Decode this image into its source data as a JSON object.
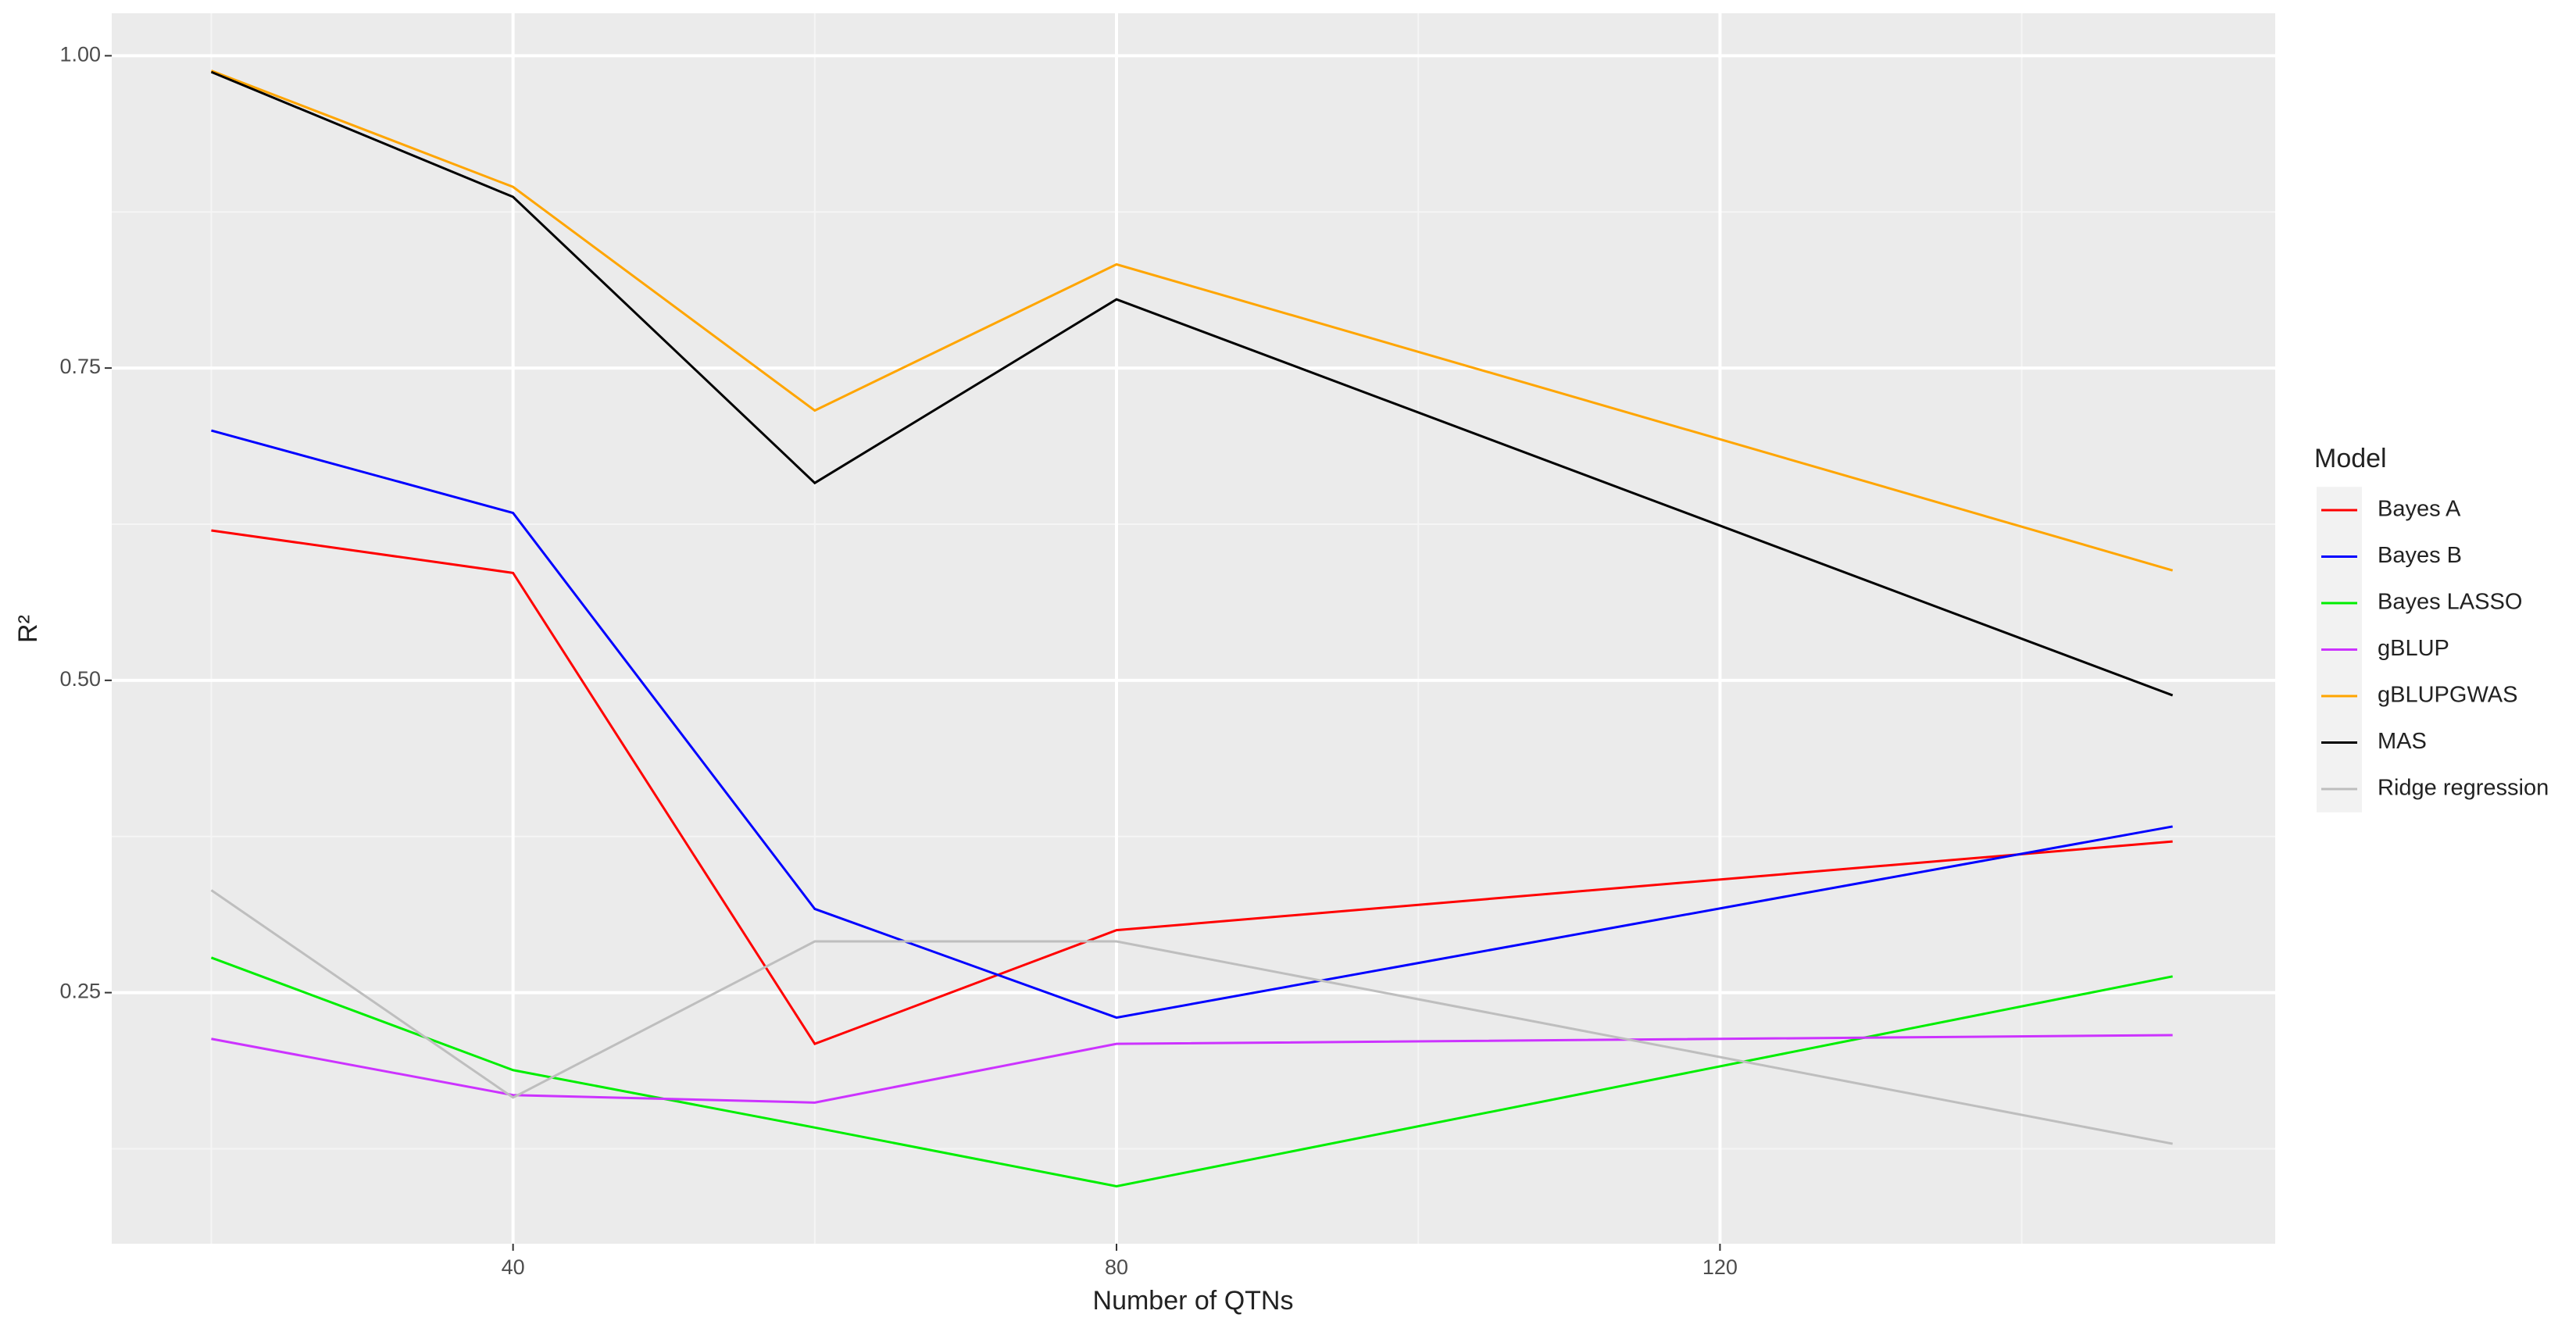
{
  "chart_data": {
    "type": "line",
    "x_label": "Number of QTNs",
    "y_label": "R²",
    "legend_title": "Model",
    "legend_position": "right",
    "grid": true,
    "x": [
      20,
      40,
      60,
      80,
      150
    ],
    "xlim": [
      13.4,
      156.8
    ],
    "xticks": [
      40,
      80,
      120
    ],
    "ylim": [
      0.049,
      1.034
    ],
    "yticks": [
      {
        "value": 0.25,
        "label": "0.25"
      },
      {
        "value": 0.5,
        "label": "0.50"
      },
      {
        "value": 0.75,
        "label": "0.75"
      },
      {
        "value": 1,
        "label": "1.00"
      }
    ],
    "series": [
      {
        "name": "Bayes A",
        "color": "#ff0000",
        "values": [
          0.62,
          0.586,
          0.209,
          0.3,
          0.371
        ]
      },
      {
        "name": "Bayes B",
        "color": "#0000ff",
        "values": [
          0.7,
          0.634,
          0.317,
          0.23,
          0.383
        ]
      },
      {
        "name": "Bayes LASSO",
        "color": "#00ee00",
        "values": [
          0.278,
          0.188,
          0.142,
          0.095,
          0.263
        ]
      },
      {
        "name": "gBLUP",
        "color": "#cc33ff",
        "values": [
          0.213,
          0.168,
          0.162,
          0.209,
          0.216
        ]
      },
      {
        "name": "gBLUPGWAS",
        "color": "#ffa500",
        "values": [
          0.988,
          0.895,
          0.716,
          0.833,
          0.588
        ]
      },
      {
        "name": "MAS",
        "color": "#000000",
        "values": [
          0.987,
          0.887,
          0.658,
          0.805,
          0.488
        ]
      },
      {
        "name": "Ridge regression",
        "color": "#bebebe",
        "values": [
          0.332,
          0.166,
          0.291,
          0.291,
          0.129
        ]
      }
    ]
  }
}
